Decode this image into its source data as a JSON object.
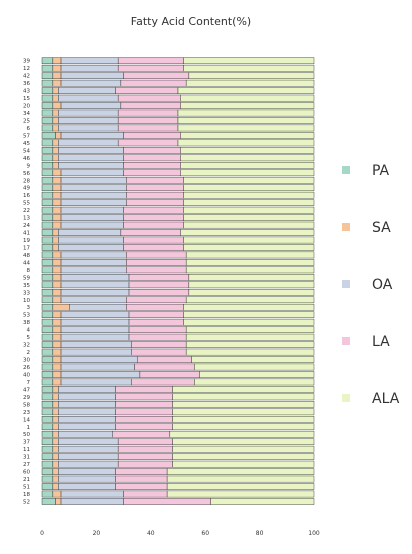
{
  "chart_data": {
    "type": "bar",
    "orientation": "horizontal",
    "stacked": true,
    "title": "Fatty Acid Content(%)",
    "xlim": [
      0,
      100
    ],
    "xticks": [
      0,
      20,
      40,
      60,
      80,
      100
    ],
    "grid": false,
    "legend_position": "right",
    "categories": [
      "39",
      "12",
      "42",
      "36",
      "43",
      "15",
      "20",
      "34",
      "25",
      "6",
      "57",
      "45",
      "54",
      "46",
      "9",
      "56",
      "28",
      "49",
      "16",
      "55",
      "22",
      "13",
      "24",
      "41",
      "19",
      "17",
      "48",
      "44",
      "8",
      "59",
      "35",
      "33",
      "10",
      "3",
      "53",
      "38",
      "4",
      "5",
      "32",
      "2",
      "30",
      "26",
      "40",
      "7",
      "47",
      "29",
      "58",
      "23",
      "14",
      "1",
      "50",
      "37",
      "11",
      "31",
      "27",
      "60",
      "21",
      "51",
      "18",
      "52"
    ],
    "series": [
      {
        "name": "PA",
        "color": "#a7d7c5",
        "values": [
          4,
          4,
          4,
          4,
          4,
          4,
          4,
          4,
          4,
          4,
          5,
          4,
          4,
          4,
          4,
          4,
          4,
          4,
          4,
          4,
          4,
          4,
          4,
          4,
          4,
          4,
          4,
          4,
          4,
          4,
          4,
          4,
          4,
          4,
          4,
          4,
          4,
          4,
          4,
          4,
          4,
          4,
          4,
          4,
          4,
          4,
          4,
          4,
          4,
          4,
          4,
          4,
          4,
          4,
          4,
          4,
          4,
          4,
          4,
          5
        ]
      },
      {
        "name": "SA",
        "color": "#f5c49b",
        "values": [
          3,
          3,
          3,
          3,
          2,
          2,
          3,
          2,
          2,
          2,
          2,
          2,
          2,
          2,
          2,
          3,
          3,
          3,
          3,
          3,
          3,
          3,
          3,
          2,
          2,
          2,
          3,
          3,
          3,
          3,
          3,
          3,
          3,
          6,
          3,
          3,
          3,
          3,
          3,
          3,
          3,
          3,
          3,
          3,
          2,
          2,
          2,
          2,
          2,
          2,
          2,
          2,
          2,
          2,
          2,
          2,
          2,
          2,
          3,
          2
        ]
      },
      {
        "name": "OA",
        "color": "#c9d3e3",
        "values": [
          21,
          21,
          23,
          22,
          21,
          22,
          22,
          22,
          22,
          22,
          23,
          22,
          24,
          24,
          24,
          23,
          24,
          24,
          24,
          24,
          23,
          23,
          23,
          23,
          24,
          24,
          24,
          24,
          24,
          25,
          25,
          25,
          24,
          21,
          25,
          25,
          25,
          25,
          26,
          26,
          28,
          27,
          29,
          26,
          21,
          21,
          21,
          21,
          21,
          21,
          20,
          22,
          22,
          22,
          22,
          21,
          21,
          21,
          23,
          23
        ]
      },
      {
        "name": "LA",
        "color": "#f4c6dc",
        "values": [
          24,
          24,
          24,
          24,
          23,
          23,
          22,
          22,
          22,
          22,
          21,
          22,
          21,
          21,
          21,
          21,
          21,
          21,
          21,
          21,
          22,
          22,
          22,
          22,
          22,
          22,
          22,
          22,
          22,
          22,
          22,
          22,
          22,
          21,
          20,
          20,
          21,
          21,
          20,
          20,
          20,
          22,
          22,
          23,
          21,
          21,
          21,
          21,
          21,
          21,
          21,
          20,
          20,
          20,
          20,
          19,
          19,
          19,
          16,
          32
        ]
      },
      {
        "name": "ALA",
        "color": "#e8f4c4",
        "values": [
          48,
          48,
          46,
          47,
          50,
          49,
          49,
          50,
          50,
          50,
          49,
          50,
          49,
          49,
          49,
          49,
          48,
          48,
          48,
          48,
          48,
          48,
          48,
          49,
          48,
          48,
          47,
          47,
          47,
          46,
          46,
          46,
          47,
          48,
          48,
          48,
          47,
          47,
          47,
          47,
          45,
          44,
          42,
          44,
          52,
          52,
          52,
          52,
          52,
          52,
          53,
          52,
          52,
          52,
          52,
          54,
          54,
          54,
          54,
          38
        ]
      }
    ]
  }
}
